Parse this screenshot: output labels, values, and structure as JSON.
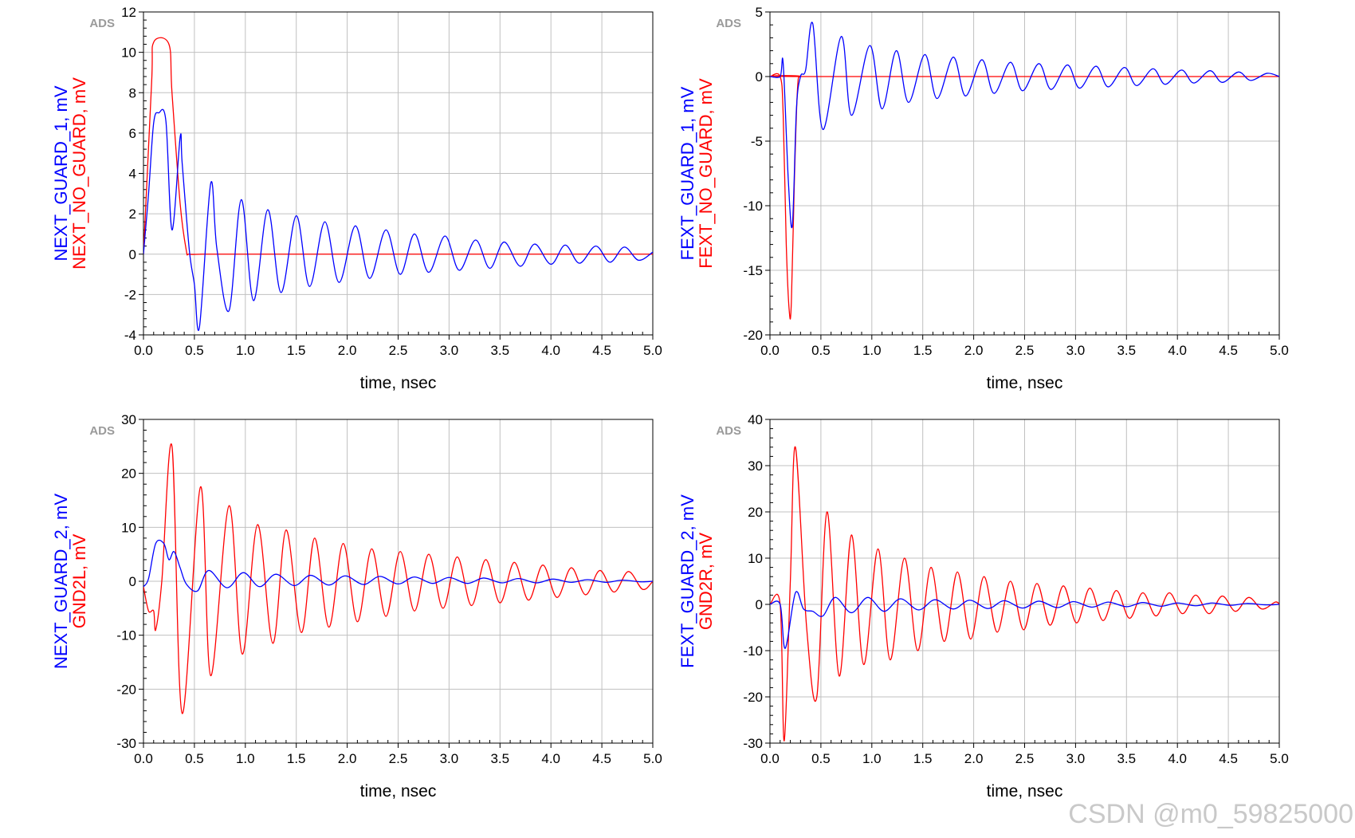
{
  "watermark": "CSDN @m0_59825000",
  "colors": {
    "blue": "#0000ff",
    "red": "#ff0000",
    "grid": "#c0c0c0",
    "frame": "#000000"
  },
  "chart_data": [
    {
      "type": "line",
      "badge": "ADS",
      "xlabel": "time, nsec",
      "ylabel_lines": [
        "NEXT_GUARD_1, mV",
        "NEXT_NO_GUARD, mV"
      ],
      "xlim": [
        0,
        5
      ],
      "ylim": [
        -4,
        12
      ],
      "xticks": [
        "0.0",
        "0.5",
        "1.0",
        "1.5",
        "2.0",
        "2.5",
        "3.0",
        "3.5",
        "4.0",
        "4.5",
        "5.0"
      ],
      "yticks": [
        "-4",
        "-2",
        "0",
        "2",
        "4",
        "6",
        "8",
        "10",
        "12"
      ],
      "series": [
        {
          "name": "NEXT_GUARD_1",
          "color": "#0000ff",
          "x": [
            0.0,
            0.05,
            0.1,
            0.15,
            0.22,
            0.28,
            0.36,
            0.38,
            0.45,
            0.5,
            0.55,
            0.66,
            0.72,
            0.84,
            0.96,
            1.08,
            1.22,
            1.35,
            1.5,
            1.63,
            1.78,
            1.92,
            2.08,
            2.22,
            2.38,
            2.52,
            2.66,
            2.8,
            2.96,
            3.1,
            3.26,
            3.4,
            3.54,
            3.7,
            3.84,
            4.0,
            4.14,
            4.28,
            4.44,
            4.58,
            4.72,
            4.86,
            5.0
          ],
          "y": [
            0.0,
            3.0,
            6.5,
            7.0,
            6.6,
            1.2,
            5.8,
            4.5,
            0.2,
            -1.5,
            -3.6,
            3.5,
            0.3,
            -2.8,
            2.7,
            -2.3,
            2.2,
            -1.9,
            1.9,
            -1.6,
            1.6,
            -1.4,
            1.4,
            -1.2,
            1.2,
            -1.0,
            1.0,
            -0.9,
            0.9,
            -0.8,
            0.7,
            -0.7,
            0.6,
            -0.6,
            0.5,
            -0.5,
            0.45,
            -0.45,
            0.4,
            -0.4,
            0.35,
            -0.3,
            0.1
          ]
        },
        {
          "name": "NEXT_NO_GUARD",
          "color": "#ff0000",
          "x": [
            0.0,
            0.08,
            0.1,
            0.25,
            0.28,
            0.36,
            0.42,
            0.45,
            0.6,
            1.0,
            5.0
          ],
          "y": [
            0.0,
            8.5,
            10.5,
            10.4,
            8.0,
            2.5,
            0.2,
            0.0,
            0.0,
            0.0,
            0.0
          ]
        }
      ]
    },
    {
      "type": "line",
      "badge": "ADS",
      "xlabel": "time, nsec",
      "ylabel_lines": [
        "FEXT_GUARD_1, mV",
        "FEXT_NO_GUARD, mV"
      ],
      "xlim": [
        0,
        5
      ],
      "ylim": [
        -20,
        5
      ],
      "xticks": [
        "0.0",
        "0.5",
        "1.0",
        "1.5",
        "2.0",
        "2.5",
        "3.0",
        "3.5",
        "4.0",
        "4.5",
        "5.0"
      ],
      "yticks": [
        "-20",
        "-15",
        "-10",
        "-5",
        "0",
        "5"
      ],
      "series": [
        {
          "name": "FEXT_GUARD_1",
          "color": "#0000ff",
          "x": [
            0.0,
            0.1,
            0.13,
            0.18,
            0.22,
            0.26,
            0.3,
            0.35,
            0.42,
            0.52,
            0.7,
            0.8,
            0.98,
            1.1,
            1.24,
            1.36,
            1.52,
            1.64,
            1.8,
            1.92,
            2.08,
            2.2,
            2.36,
            2.48,
            2.64,
            2.76,
            2.92,
            3.04,
            3.2,
            3.32,
            3.48,
            3.6,
            3.76,
            3.88,
            4.04,
            4.16,
            4.32,
            4.44,
            4.6,
            4.72,
            4.88,
            5.0
          ],
          "y": [
            0.0,
            0.0,
            1.0,
            -8.0,
            -11.5,
            -2.5,
            0.0,
            0.5,
            4.1,
            -4.1,
            3.1,
            -3.0,
            2.4,
            -2.5,
            2.0,
            -2.0,
            1.7,
            -1.7,
            1.5,
            -1.5,
            1.3,
            -1.3,
            1.1,
            -1.1,
            1.0,
            -1.0,
            0.9,
            -0.9,
            0.8,
            -0.8,
            0.7,
            -0.7,
            0.6,
            -0.6,
            0.5,
            -0.5,
            0.45,
            -0.45,
            0.35,
            -0.3,
            0.25,
            0.0
          ]
        },
        {
          "name": "FEXT_NO_GUARD",
          "color": "#ff0000",
          "x": [
            0.0,
            0.1,
            0.13,
            0.16,
            0.19,
            0.21,
            0.24,
            0.27,
            0.3,
            0.4,
            5.0
          ],
          "y": [
            0.0,
            0.0,
            -3.0,
            -13.0,
            -18.2,
            -17.5,
            -8.0,
            -1.0,
            0.0,
            0.0,
            0.0
          ]
        }
      ]
    },
    {
      "type": "line",
      "badge": "ADS",
      "xlabel": "time, nsec",
      "ylabel_lines": [
        "NEXT_GUARD_2, mV",
        "GND2L, mV"
      ],
      "xlim": [
        0,
        5
      ],
      "ylim": [
        -30,
        30
      ],
      "xticks": [
        "0.0",
        "0.5",
        "1.0",
        "1.5",
        "2.0",
        "2.5",
        "3.0",
        "3.5",
        "4.0",
        "4.5",
        "5.0"
      ],
      "yticks": [
        "-30",
        "-20",
        "-10",
        "0",
        "10",
        "20",
        "30"
      ],
      "series": [
        {
          "name": "NEXT_GUARD_2",
          "color": "#0000ff",
          "x": [
            0.0,
            0.05,
            0.12,
            0.2,
            0.25,
            0.3,
            0.36,
            0.42,
            0.53,
            0.64,
            0.82,
            0.98,
            1.14,
            1.3,
            1.48,
            1.64,
            1.82,
            1.98,
            2.16,
            2.32,
            2.5,
            2.66,
            2.84,
            3.0,
            3.18,
            3.34,
            3.52,
            3.68,
            3.86,
            4.02,
            4.2,
            4.36,
            4.54,
            4.7,
            4.88,
            5.0
          ],
          "y": [
            -1.0,
            0.5,
            7.0,
            7.0,
            4.0,
            5.5,
            2.5,
            -0.5,
            -1.8,
            2.0,
            -1.2,
            1.6,
            -1.0,
            1.3,
            -0.8,
            1.1,
            -0.7,
            1.0,
            -0.6,
            0.9,
            -0.5,
            0.8,
            -0.4,
            0.7,
            -0.4,
            0.6,
            -0.3,
            0.5,
            -0.3,
            0.4,
            -0.2,
            0.3,
            -0.2,
            0.2,
            -0.1,
            0.0
          ]
        },
        {
          "name": "GND2L",
          "color": "#ff0000",
          "x": [
            0.0,
            0.05,
            0.1,
            0.12,
            0.18,
            0.28,
            0.38,
            0.56,
            0.66,
            0.84,
            0.97,
            1.12,
            1.27,
            1.4,
            1.55,
            1.68,
            1.82,
            1.96,
            2.1,
            2.24,
            2.38,
            2.52,
            2.66,
            2.8,
            2.94,
            3.08,
            3.22,
            3.36,
            3.5,
            3.64,
            3.78,
            3.92,
            4.06,
            4.2,
            4.34,
            4.48,
            4.62,
            4.76,
            4.9,
            5.0
          ],
          "y": [
            -1.0,
            -5.5,
            -5.5,
            -9.0,
            0.0,
            25.0,
            -24.5,
            17.5,
            -17.5,
            14.0,
            -13.5,
            10.5,
            -11.5,
            9.5,
            -9.5,
            8.0,
            -8.5,
            7.0,
            -7.5,
            6.0,
            -6.5,
            5.5,
            -5.5,
            5.0,
            -5.0,
            4.5,
            -4.5,
            4.0,
            -4.0,
            3.5,
            -3.5,
            3.0,
            -3.0,
            2.5,
            -2.5,
            2.0,
            -2.0,
            1.8,
            -1.5,
            0.0
          ]
        }
      ]
    },
    {
      "type": "line",
      "badge": "ADS",
      "xlabel": "time, nsec",
      "ylabel_lines": [
        "FEXT_GUARD_2, mV",
        "GND2R, mV"
      ],
      "xlim": [
        0,
        5
      ],
      "ylim": [
        -30,
        40
      ],
      "xticks": [
        "0.0",
        "0.5",
        "1.0",
        "1.5",
        "2.0",
        "2.5",
        "3.0",
        "3.5",
        "4.0",
        "4.5",
        "5.0"
      ],
      "yticks": [
        "-30",
        "-20",
        "-10",
        "0",
        "10",
        "20",
        "30",
        "40"
      ],
      "series": [
        {
          "name": "FEXT_GUARD_2",
          "color": "#0000ff",
          "x": [
            0.0,
            0.1,
            0.15,
            0.25,
            0.33,
            0.42,
            0.52,
            0.64,
            0.8,
            0.96,
            1.12,
            1.28,
            1.46,
            1.62,
            1.8,
            1.96,
            2.14,
            2.3,
            2.48,
            2.64,
            2.82,
            2.98,
            3.16,
            3.32,
            3.5,
            3.66,
            3.84,
            4.0,
            4.18,
            4.34,
            4.52,
            4.68,
            4.86,
            5.0
          ],
          "y": [
            0.0,
            0.0,
            -9.5,
            2.5,
            -1.0,
            -1.5,
            -2.5,
            1.5,
            -1.8,
            1.5,
            -1.5,
            1.2,
            -1.2,
            1.0,
            -1.0,
            0.9,
            -0.9,
            0.8,
            -0.8,
            0.7,
            -0.7,
            0.6,
            -0.6,
            0.5,
            -0.5,
            0.4,
            -0.4,
            0.3,
            -0.3,
            0.3,
            -0.2,
            0.2,
            -0.1,
            0.0
          ]
        },
        {
          "name": "GND2R",
          "color": "#ff0000",
          "x": [
            0.0,
            0.1,
            0.14,
            0.2,
            0.25,
            0.36,
            0.46,
            0.56,
            0.68,
            0.8,
            0.92,
            1.06,
            1.18,
            1.32,
            1.45,
            1.58,
            1.71,
            1.84,
            1.97,
            2.1,
            2.23,
            2.36,
            2.49,
            2.62,
            2.75,
            2.88,
            3.01,
            3.14,
            3.27,
            3.4,
            3.53,
            3.66,
            3.79,
            3.92,
            4.05,
            4.18,
            4.31,
            4.44,
            4.57,
            4.7,
            4.83,
            4.96,
            5.0
          ],
          "y": [
            0.0,
            0.0,
            -29.5,
            5.0,
            34.0,
            -5.0,
            -20.0,
            20.0,
            -15.5,
            15.0,
            -13.0,
            12.0,
            -12.0,
            10.0,
            -10.0,
            8.0,
            -8.0,
            7.0,
            -7.5,
            6.0,
            -6.0,
            5.0,
            -5.5,
            4.5,
            -4.5,
            4.0,
            -4.0,
            3.5,
            -3.5,
            3.0,
            -3.0,
            2.5,
            -2.5,
            2.5,
            -2.0,
            2.0,
            -2.0,
            1.8,
            -1.5,
            1.5,
            -1.0,
            0.5,
            0.0
          ]
        }
      ]
    }
  ]
}
